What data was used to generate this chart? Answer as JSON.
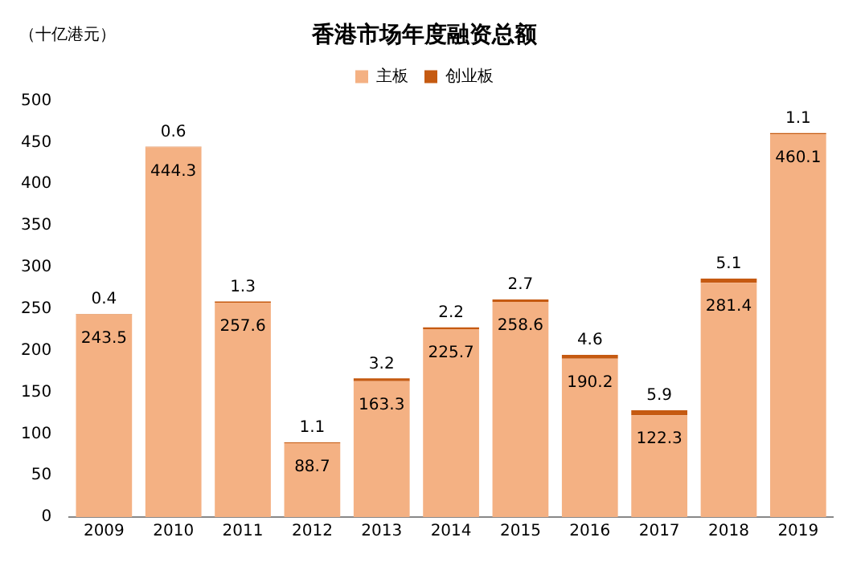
{
  "chart_data": {
    "type": "bar",
    "title": "香港市场年度融资总额",
    "ylabel": "（十亿港元）",
    "categories": [
      "2009",
      "2010",
      "2011",
      "2012",
      "2013",
      "2014",
      "2015",
      "2016",
      "2017",
      "2018",
      "2019"
    ],
    "series": [
      {
        "name": "主板",
        "color": "#f4b183",
        "values": [
          243.5,
          444.3,
          257.6,
          88.7,
          163.3,
          225.7,
          258.6,
          190.2,
          122.3,
          281.4,
          460.1
        ]
      },
      {
        "name": "创业板",
        "color": "#c55a11",
        "values": [
          0.4,
          0.6,
          1.3,
          1.1,
          3.2,
          2.2,
          2.7,
          4.6,
          5.9,
          5.1,
          1.1
        ]
      }
    ],
    "stacked": true,
    "ylim": [
      0,
      500
    ],
    "yticks": [
      0,
      50,
      100,
      150,
      200,
      250,
      300,
      350,
      400,
      450,
      500
    ],
    "grid": false,
    "legend": "top",
    "data_labels": true
  }
}
